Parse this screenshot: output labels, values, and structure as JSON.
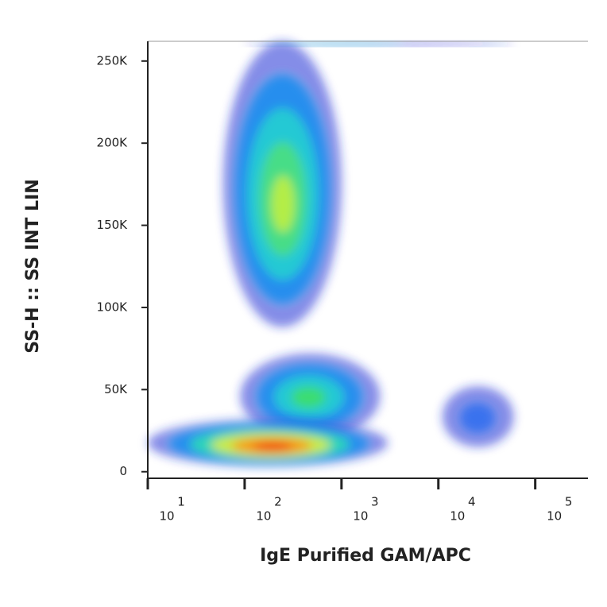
{
  "chart_data": {
    "type": "density",
    "x_label": "IgE Purified GAM/APC",
    "y_label": "SS-H :: SS INT LIN",
    "x_scale": "log",
    "xlim": [
      10,
      350000
    ],
    "xticks": [
      {
        "value": 10,
        "label": "10",
        "exponent": "1"
      },
      {
        "value": 100,
        "label": "10",
        "exponent": "2"
      },
      {
        "value": 1000,
        "label": "10",
        "exponent": "3"
      },
      {
        "value": 10000,
        "label": "10",
        "exponent": "4"
      },
      {
        "value": 100000,
        "label": "10",
        "exponent": "5"
      }
    ],
    "ylim": [
      -4000,
      262000
    ],
    "yticks": [
      {
        "value": 0,
        "label": "0"
      },
      {
        "value": 50000,
        "label": "50K"
      },
      {
        "value": 100000,
        "label": "100K"
      },
      {
        "value": 150000,
        "label": "150K"
      },
      {
        "value": 200000,
        "label": "200K"
      },
      {
        "value": 250000,
        "label": "250K"
      }
    ],
    "populations": [
      {
        "x": 250,
        "y": 160000,
        "x_range": [
          60,
          1000
        ],
        "y_range": [
          88000,
          262000
        ],
        "colors": [
          "#1f2fd6",
          "#1a8ff0",
          "#22d3d0",
          "#4fe07a",
          "#c8f03c"
        ]
      },
      {
        "x": 450,
        "y": 45000,
        "x_range": [
          90,
          2500
        ],
        "y_range": [
          20000,
          72000
        ],
        "colors": [
          "#1f2fd6",
          "#1a8ff0",
          "#22d3d0",
          "#3fe060"
        ]
      },
      {
        "x": 200,
        "y": 15000,
        "x_range": [
          10,
          3000
        ],
        "y_range": [
          3000,
          32000
        ],
        "colors": [
          "#1f2fd6",
          "#1a8ff0",
          "#30e0b0",
          "#e8f030",
          "#ff8a10",
          "#f01818"
        ]
      },
      {
        "x": 25000,
        "y": 32000,
        "x_range": [
          11000,
          60000
        ],
        "y_range": [
          15000,
          52000
        ],
        "colors": [
          "#1f2fd6",
          "#2f6ff0"
        ]
      },
      {
        "x": 300,
        "y": 261000,
        "x_range": [
          100,
          60000
        ],
        "y_range": [
          259000,
          262000
        ],
        "colors": [
          "#1f2fd6",
          "#20c0d8"
        ]
      }
    ]
  }
}
